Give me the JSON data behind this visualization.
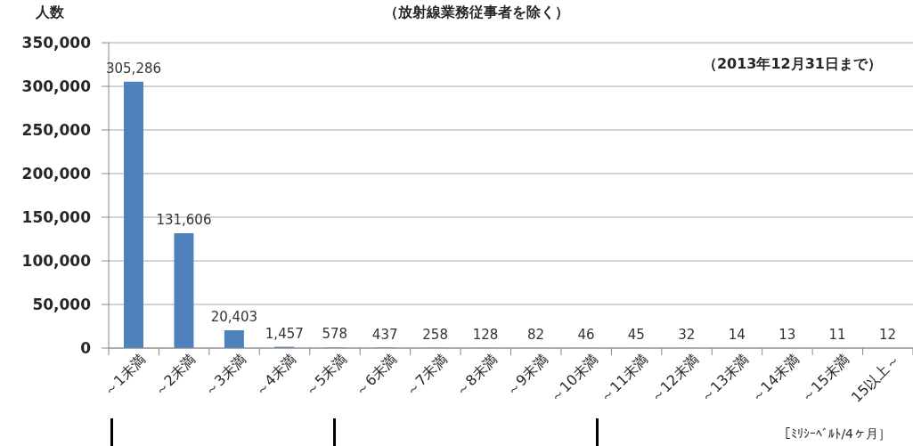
{
  "chart_data": {
    "type": "bar",
    "title": "（放射線業務従事者を除く）",
    "ylabel": "人数",
    "xlabel": "［ﾐﾘｼｰﾍﾞﾙﾄ/4ヶ月］",
    "annotations": [
      "（2013年12月31日まで）"
    ],
    "categories": [
      "～1未満",
      "～2未満",
      "～3未満",
      "～4未満",
      "～5未満",
      "～6未満",
      "～7未満",
      "～8未満",
      "～9未満",
      "～10未満",
      "～11未満",
      "～12未満",
      "～13未満",
      "～14未満",
      "～15未満",
      "15以上～"
    ],
    "values": [
      305286,
      131606,
      20403,
      1457,
      578,
      437,
      258,
      128,
      82,
      46,
      45,
      32,
      14,
      13,
      11,
      12
    ],
    "value_labels": [
      "305,286",
      "131,606",
      "20,403",
      "1,457",
      "578",
      "437",
      "258",
      "128",
      "82",
      "46",
      "45",
      "32",
      "14",
      "13",
      "11",
      "12"
    ],
    "color": "#4f81bd",
    "ylim": [
      0,
      350000
    ],
    "yticks": [
      0,
      {
        "value": 50000,
        "label": "50,000"
      },
      {
        "value": 100000,
        "label": "100,000"
      },
      {
        "value": 150000,
        "label": "150,000"
      },
      {
        "value": 200000,
        "label": "200,000"
      },
      {
        "value": 250000,
        "label": "250,000"
      },
      {
        "value": 300000,
        "label": "300,000"
      },
      {
        "value": 350000,
        "label": "350,000"
      }
    ],
    "grid": "y"
  }
}
